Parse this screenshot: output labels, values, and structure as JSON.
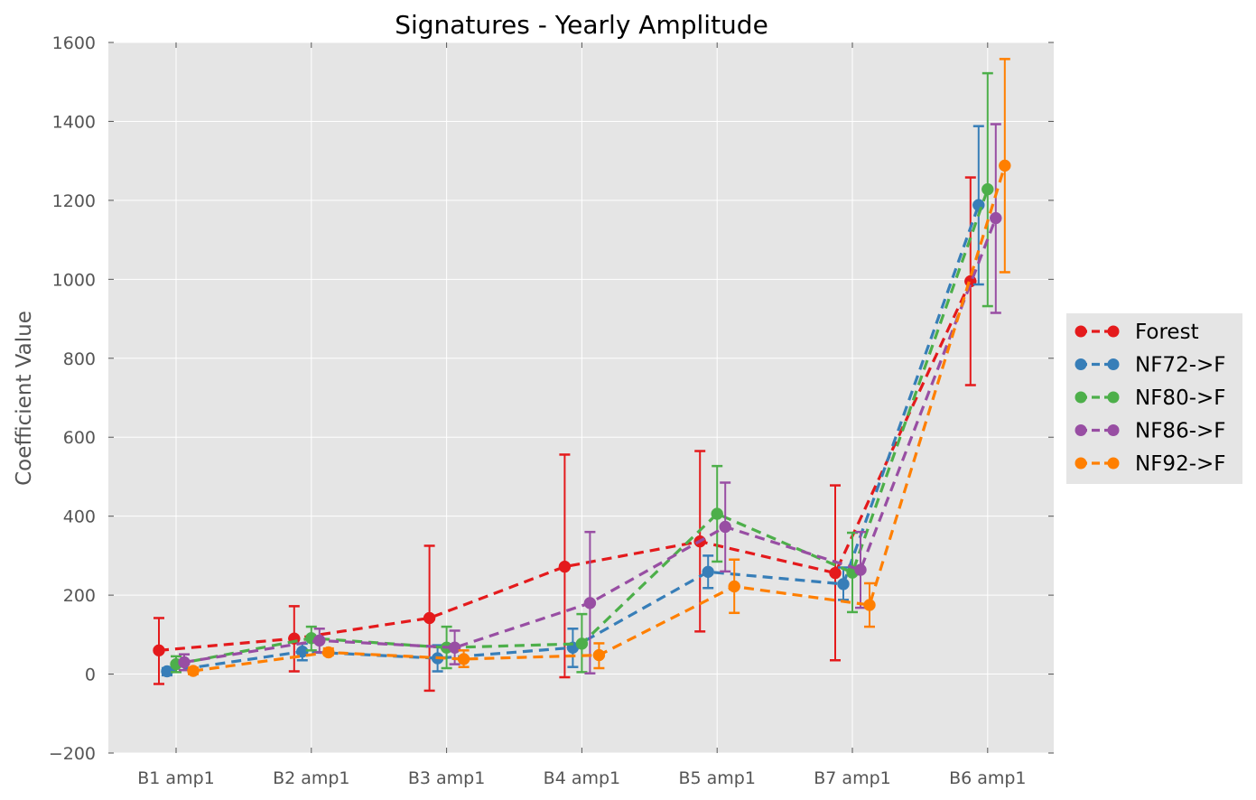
{
  "chart_data": {
    "type": "line",
    "title": "Signatures - Yearly Amplitude",
    "xlabel": "",
    "ylabel": "Coefficient Value",
    "categories": [
      "B1 amp1",
      "B2 amp1",
      "B3 amp1",
      "B4 amp1",
      "B5 amp1",
      "B7 amp1",
      "B6 amp1"
    ],
    "ylim": [
      -200,
      1600
    ],
    "yticks": [
      -200,
      0,
      200,
      400,
      600,
      800,
      1000,
      1200,
      1400,
      1600
    ],
    "ytick_labels": [
      "−200",
      "0",
      "200",
      "400",
      "600",
      "800",
      "1000",
      "1200",
      "1400",
      "1600"
    ],
    "grid": true,
    "legend_position": "right, outside plot",
    "series": [
      {
        "name": "Forest",
        "color": "#e41a1c",
        "values": [
          60,
          90,
          142,
          272,
          336,
          256,
          995
        ],
        "err_low": [
          -25,
          7,
          -42,
          -8,
          108,
          35,
          732
        ],
        "err_high": [
          142,
          172,
          325,
          556,
          565,
          478,
          1258
        ]
      },
      {
        "name": "NF72->F",
        "color": "#377eb8",
        "values": [
          7,
          57,
          40,
          67,
          259,
          228,
          1188
        ],
        "err_low": [
          -3,
          35,
          7,
          18,
          218,
          188,
          987
        ],
        "err_high": [
          15,
          77,
          73,
          115,
          300,
          270,
          1388
        ]
      },
      {
        "name": "NF80->F",
        "color": "#4daf4a",
        "values": [
          25,
          91,
          67,
          77,
          406,
          257,
          1228
        ],
        "err_low": [
          5,
          60,
          15,
          5,
          285,
          157,
          932
        ],
        "err_high": [
          45,
          120,
          120,
          152,
          527,
          358,
          1522
        ]
      },
      {
        "name": "NF86->F",
        "color": "#984ea3",
        "values": [
          30,
          85,
          67,
          180,
          373,
          264,
          1155
        ],
        "err_low": [
          10,
          55,
          25,
          2,
          260,
          168,
          915
        ],
        "err_high": [
          50,
          115,
          110,
          360,
          485,
          360,
          1393
        ]
      },
      {
        "name": "NF92->F",
        "color": "#ff7f00",
        "values": [
          8,
          55,
          38,
          48,
          222,
          175,
          1288
        ],
        "err_low": [
          0,
          48,
          18,
          15,
          155,
          120,
          1018
        ],
        "err_high": [
          16,
          65,
          60,
          78,
          290,
          230,
          1558
        ]
      }
    ]
  }
}
